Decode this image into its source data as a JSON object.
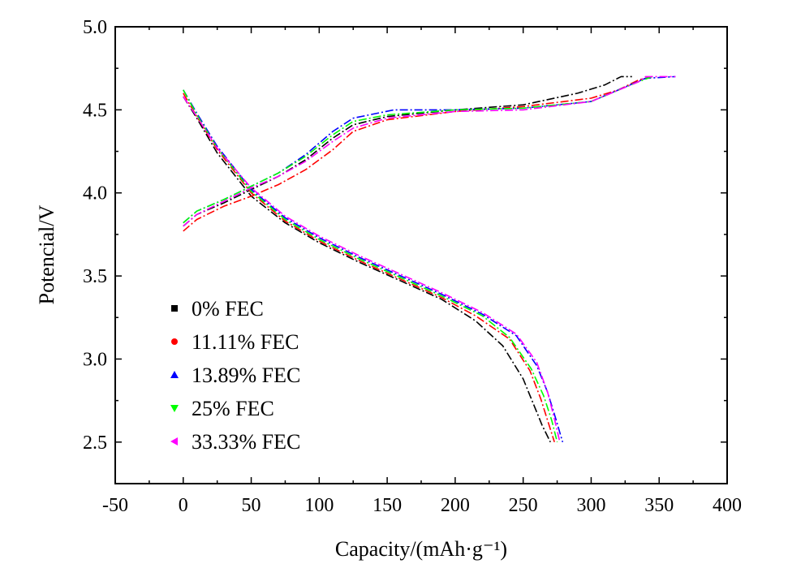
{
  "chart_data": {
    "type": "line",
    "title": "",
    "xlabel": "Capacity/(mAh·g⁻¹)",
    "ylabel": "Potencial/V",
    "xlim": [
      -50,
      400
    ],
    "ylim": [
      2.25,
      5.0
    ],
    "xticks": [
      -50,
      0,
      50,
      100,
      150,
      200,
      250,
      300,
      350,
      400
    ],
    "yticks": [
      2.5,
      3.0,
      3.5,
      4.0,
      4.5,
      5.0
    ],
    "xtick_labels": [
      "-50",
      "0",
      "50",
      "100",
      "150",
      "200",
      "250",
      "300",
      "350",
      "400"
    ],
    "ytick_labels": [
      "2.5",
      "3.0",
      "3.5",
      "4.0",
      "4.5",
      "5.0"
    ],
    "grid": false,
    "legend_position": "lower-left",
    "series": [
      {
        "name": "0% FEC",
        "color": "#000000",
        "marker": "square",
        "charge": {
          "x": [
            0,
            10,
            30,
            50,
            70,
            90,
            110,
            125,
            150,
            200,
            250,
            290,
            310,
            322,
            330
          ],
          "y": [
            3.8,
            3.87,
            3.94,
            4.02,
            4.1,
            4.2,
            4.33,
            4.41,
            4.46,
            4.5,
            4.53,
            4.6,
            4.65,
            4.7,
            4.7
          ]
        },
        "discharge": {
          "x": [
            0,
            10,
            25,
            50,
            75,
            100,
            130,
            160,
            190,
            215,
            235,
            250,
            258,
            264,
            270
          ],
          "y": [
            4.58,
            4.45,
            4.24,
            3.98,
            3.82,
            3.7,
            3.58,
            3.47,
            3.36,
            3.23,
            3.08,
            2.88,
            2.72,
            2.6,
            2.5
          ]
        }
      },
      {
        "name": "11.11% FEC",
        "color": "#ff0000",
        "marker": "circle",
        "charge": {
          "x": [
            0,
            10,
            30,
            50,
            70,
            90,
            110,
            125,
            150,
            200,
            250,
            300,
            320,
            335,
            345
          ],
          "y": [
            3.77,
            3.84,
            3.92,
            3.98,
            4.05,
            4.14,
            4.26,
            4.37,
            4.44,
            4.49,
            4.52,
            4.57,
            4.62,
            4.68,
            4.7
          ]
        },
        "discharge": {
          "x": [
            0,
            10,
            25,
            50,
            75,
            100,
            130,
            160,
            190,
            215,
            240,
            255,
            263,
            268,
            273
          ],
          "y": [
            4.6,
            4.46,
            4.26,
            4.0,
            3.83,
            3.71,
            3.59,
            3.48,
            3.37,
            3.26,
            3.12,
            2.93,
            2.76,
            2.63,
            2.5
          ]
        }
      },
      {
        "name": "13.89% FEC",
        "color": "#0000ff",
        "marker": "triangle-up",
        "charge": {
          "x": [
            0,
            10,
            30,
            50,
            70,
            90,
            110,
            125,
            155,
            170,
            200,
            250,
            300,
            340,
            362
          ],
          "y": [
            3.82,
            3.89,
            3.96,
            4.04,
            4.12,
            4.23,
            4.37,
            4.45,
            4.5,
            4.5,
            4.5,
            4.51,
            4.55,
            4.69,
            4.7
          ]
        },
        "discharge": {
          "x": [
            0,
            10,
            25,
            50,
            75,
            100,
            130,
            160,
            190,
            220,
            245,
            260,
            268,
            274,
            279
          ],
          "y": [
            4.62,
            4.48,
            4.28,
            4.02,
            3.85,
            3.73,
            3.61,
            3.5,
            3.39,
            3.27,
            3.14,
            2.96,
            2.8,
            2.64,
            2.5
          ]
        }
      },
      {
        "name": "25% FEC",
        "color": "#00ff00",
        "marker": "triangle-down",
        "charge": {
          "x": [
            0,
            10,
            30,
            50,
            70,
            90,
            110,
            125,
            150,
            200,
            250,
            300,
            335,
            345
          ],
          "y": [
            3.82,
            3.89,
            3.96,
            4.04,
            4.12,
            4.22,
            4.35,
            4.43,
            4.47,
            4.5,
            4.51,
            4.55,
            4.67,
            4.7
          ]
        },
        "discharge": {
          "x": [
            0,
            10,
            25,
            50,
            75,
            100,
            130,
            160,
            190,
            220,
            240,
            256,
            265,
            271,
            275
          ],
          "y": [
            4.62,
            4.47,
            4.27,
            4.01,
            3.84,
            3.72,
            3.6,
            3.49,
            3.38,
            3.26,
            3.13,
            2.94,
            2.78,
            2.63,
            2.5
          ]
        }
      },
      {
        "name": "33.33% FEC",
        "color": "#ff00ff",
        "marker": "triangle-left",
        "charge": {
          "x": [
            0,
            10,
            30,
            50,
            70,
            90,
            110,
            125,
            150,
            200,
            250,
            300,
            335,
            340,
            362
          ],
          "y": [
            3.8,
            3.87,
            3.95,
            4.03,
            4.1,
            4.19,
            4.31,
            4.39,
            4.45,
            4.49,
            4.5,
            4.55,
            4.67,
            4.7,
            4.7
          ]
        },
        "discharge": {
          "x": [
            0,
            10,
            25,
            50,
            75,
            100,
            130,
            160,
            190,
            220,
            245,
            260,
            268,
            273,
            277
          ],
          "y": [
            4.58,
            4.46,
            4.27,
            4.03,
            3.86,
            3.74,
            3.62,
            3.51,
            3.4,
            3.28,
            3.15,
            2.98,
            2.8,
            2.64,
            2.5
          ]
        }
      }
    ]
  }
}
